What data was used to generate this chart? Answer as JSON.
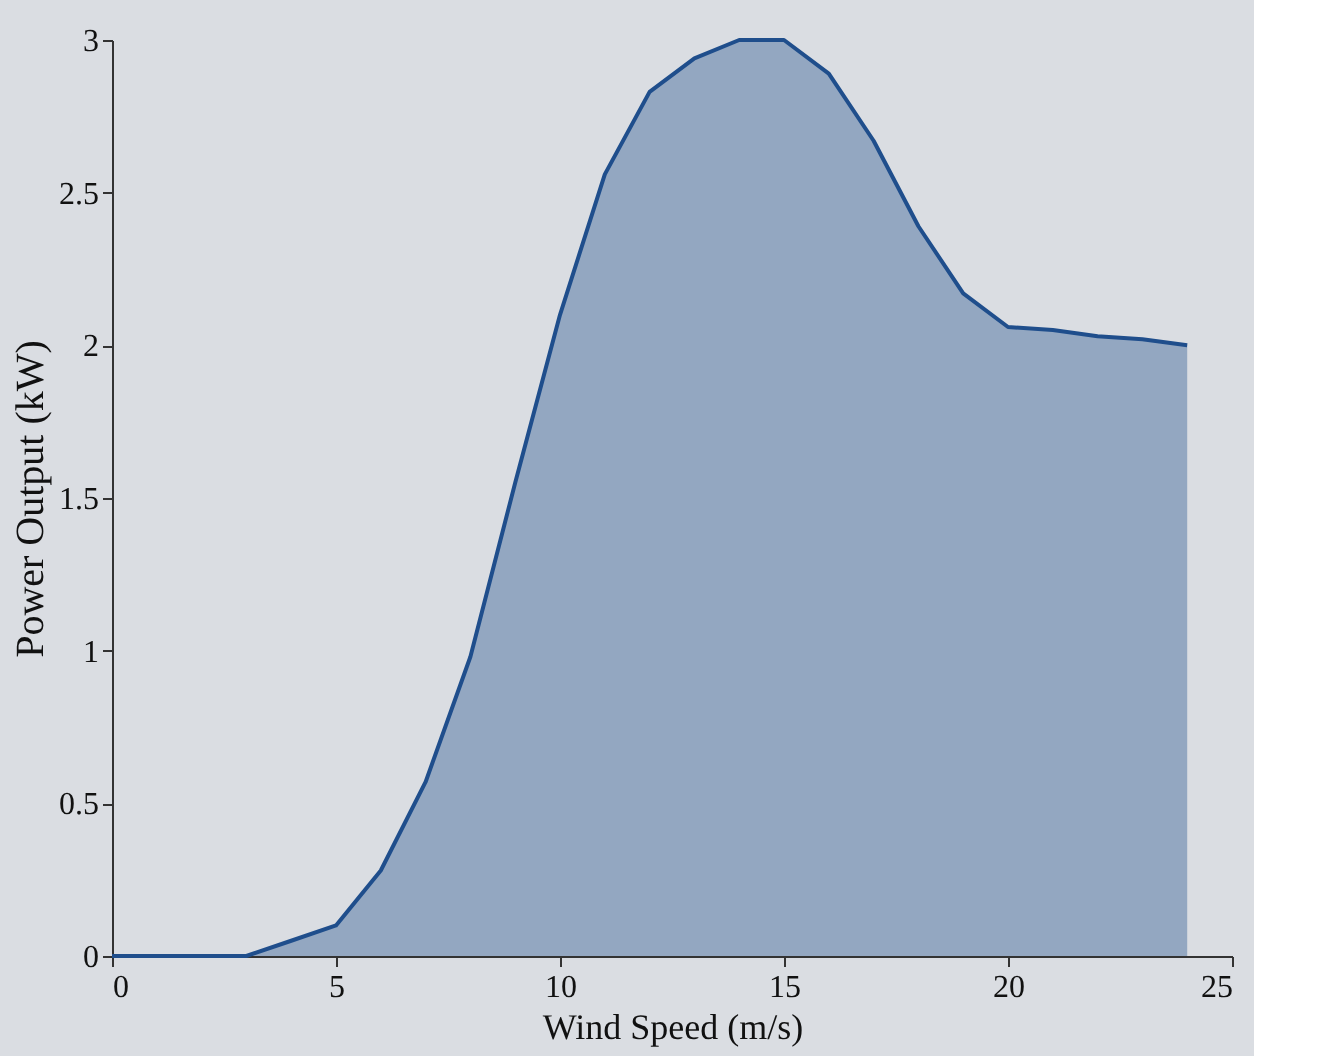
{
  "chart_data": {
    "type": "area",
    "xlabel": "Wind Speed (m/s)",
    "ylabel": "Power Output (kW)",
    "x": [
      0,
      3,
      4,
      5,
      6,
      7,
      8,
      9,
      10,
      11,
      12,
      13,
      14,
      15,
      16,
      17,
      18,
      19,
      20,
      21,
      22,
      23,
      24
    ],
    "series": [
      {
        "color": "#1f4e8c",
        "values": [
          0,
          0,
          0.05,
          0.1,
          0.28,
          0.57,
          0.98,
          1.55,
          2.1,
          2.56,
          2.83,
          2.94,
          3.0,
          3.0,
          2.89,
          2.67,
          2.39,
          2.17,
          2.06,
          2.05,
          2.03,
          2.02,
          2.0
        ]
      }
    ],
    "xlim": [
      0,
      25
    ],
    "xticks": [
      0,
      5,
      10,
      15,
      20,
      25
    ],
    "ylim": [
      0,
      3
    ],
    "yticks": [
      0,
      0.5,
      1,
      1.5,
      2,
      2.5,
      3
    ]
  }
}
